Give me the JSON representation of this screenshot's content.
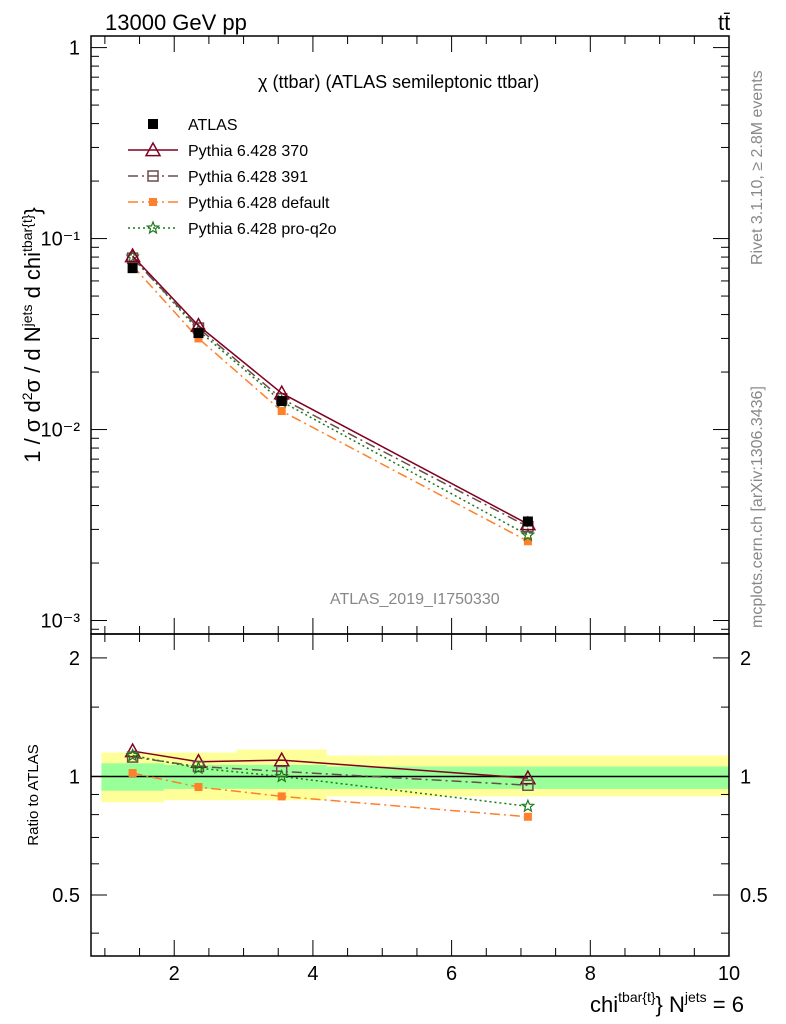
{
  "header": {
    "energy_label": "13000 GeV pp",
    "process_label": "tt̄",
    "plot_title": "χ (ttbar) (ATLAS semileptonic ttbar)",
    "analysis_id": "ATLAS_2019_I1750330",
    "rivet_label": "Rivet 3.1.10, ≥ 2.8M events",
    "source_label": "mcplots.cern.ch [arXiv:1306.3436]"
  },
  "colors": {
    "atlas": "#000000",
    "p370": "#800020",
    "p391": "#6b4c4c",
    "pdefault": "#ff7f2a",
    "pq2o": "#1a7a1a",
    "band_inner": "#99ff99",
    "band_outer": "#ffff99"
  },
  "chart_data": [
    {
      "type": "line",
      "panel": "main",
      "ylabel": "1 / σ d²σ / d N^jets d chi^tbar{t}",
      "yscale": "log",
      "ylim": [
        0.00085,
        1.15
      ],
      "xlim": [
        0.8,
        10.0
      ],
      "y_ticks": [
        "1",
        "10⁻¹",
        "10⁻²",
        "10⁻³"
      ],
      "legend_position": "top-left",
      "x": [
        1.4,
        2.35,
        3.55,
        7.1
      ],
      "series": [
        {
          "name": "ATLAS",
          "style": "square",
          "values": [
            0.07,
            0.032,
            0.0141,
            0.0033
          ]
        },
        {
          "name": "Pythia 6.428 370",
          "style": "triangle",
          "values": [
            0.081,
            0.035,
            0.0155,
            0.0032
          ]
        },
        {
          "name": "Pythia 6.428 391",
          "style": "open-square",
          "values": [
            0.079,
            0.034,
            0.0145,
            0.0031
          ]
        },
        {
          "name": "Pythia 6.428 default",
          "style": "filled-square",
          "values": [
            0.072,
            0.03,
            0.0125,
            0.0026
          ]
        },
        {
          "name": "Pythia 6.428 pro-q2o",
          "style": "star",
          "values": [
            0.08,
            0.033,
            0.014,
            0.0028
          ]
        }
      ]
    },
    {
      "type": "line",
      "panel": "ratio",
      "ylabel": "Ratio to ATLAS",
      "ylim": [
        0.35,
        2.3
      ],
      "y_ticks": [
        "2",
        "1",
        "0.5"
      ],
      "xlabel": "chi^tbar{t} N^jets = 6",
      "x_ticks": [
        "2",
        "4",
        "6",
        "8",
        "10"
      ],
      "bins": [
        [
          0.95,
          1.85
        ],
        [
          1.85,
          2.9
        ],
        [
          2.9,
          4.2
        ],
        [
          4.2,
          10.0
        ]
      ],
      "band_inner": [
        [
          0.92,
          1.08
        ],
        [
          0.93,
          1.07
        ],
        [
          0.93,
          1.07
        ],
        [
          0.93,
          1.06
        ]
      ],
      "band_outer": [
        [
          0.86,
          1.15
        ],
        [
          0.87,
          1.15
        ],
        [
          0.87,
          1.17
        ],
        [
          0.89,
          1.13
        ]
      ],
      "x": [
        1.4,
        2.35,
        3.55,
        7.1
      ],
      "series": [
        {
          "name": "Pythia 6.428 370",
          "values": [
            1.16,
            1.09,
            1.1,
            0.99
          ]
        },
        {
          "name": "Pythia 6.428 391",
          "values": [
            1.12,
            1.06,
            1.03,
            0.95
          ]
        },
        {
          "name": "Pythia 6.428 default",
          "values": [
            1.02,
            0.94,
            0.89,
            0.79
          ]
        },
        {
          "name": "Pythia 6.428 pro-q2o",
          "values": [
            1.13,
            1.05,
            1.0,
            0.84
          ]
        }
      ]
    }
  ]
}
